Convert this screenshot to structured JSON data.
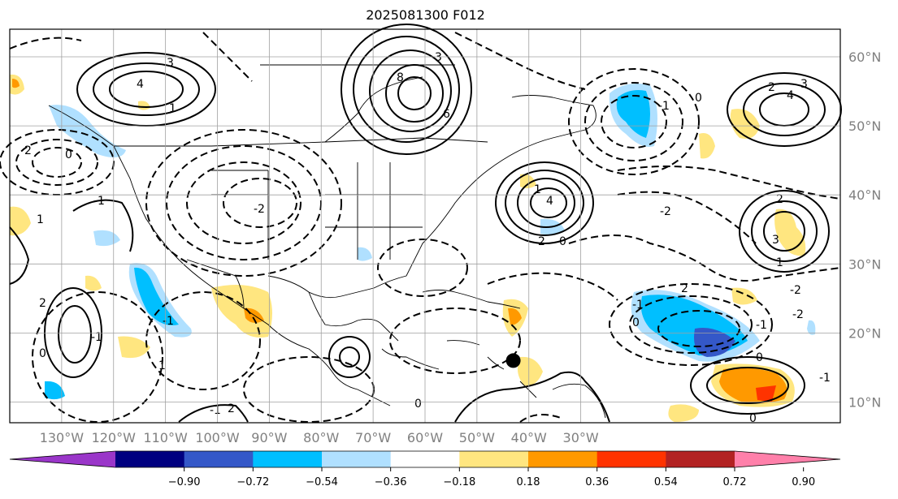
{
  "title": "2025081300 F012",
  "map": {
    "lon_range": [
      -140,
      20
    ],
    "lat_range": [
      7,
      64
    ],
    "lon_ticks": [
      "130°W",
      "120°W",
      "110°W",
      "100°W",
      "90°W",
      "80°W",
      "70°W",
      "60°W",
      "50°W",
      "40°W",
      "30°W"
    ],
    "lat_ticks": [
      "10°N",
      "20°N",
      "30°N",
      "40°N",
      "50°N",
      "60°N"
    ],
    "grid": true,
    "marker": {
      "name": "storm-center-marker",
      "lon": -43,
      "lat": 16
    }
  },
  "contour_labels": [
    "3",
    "4",
    "1",
    "2",
    "0",
    "-1",
    "-2",
    "3",
    "8",
    "6",
    "4",
    "1",
    "0",
    "2",
    "-2",
    "-1",
    "0",
    "2",
    "4",
    "3",
    "-2",
    "-1",
    "0",
    "2",
    "-1",
    "2",
    "0",
    "-2",
    "-1",
    "1",
    "0",
    "2",
    "3",
    "1",
    "0",
    "-1",
    "-1",
    "1",
    "2",
    "-1",
    "0"
  ],
  "colorbar": {
    "ticks": [
      "−0.90",
      "−0.72",
      "−0.54",
      "−0.36",
      "−0.18",
      "0.18",
      "0.36",
      "0.54",
      "0.72",
      "0.90"
    ],
    "colors": [
      "#9a36c9",
      "#000080",
      "#3458c8",
      "#00bfff",
      "#b0e0ff",
      "#ffffff",
      "#ffe680",
      "#ff9900",
      "#ff3300",
      "#b22222",
      "#ff80aa"
    ],
    "extend": "both"
  }
}
